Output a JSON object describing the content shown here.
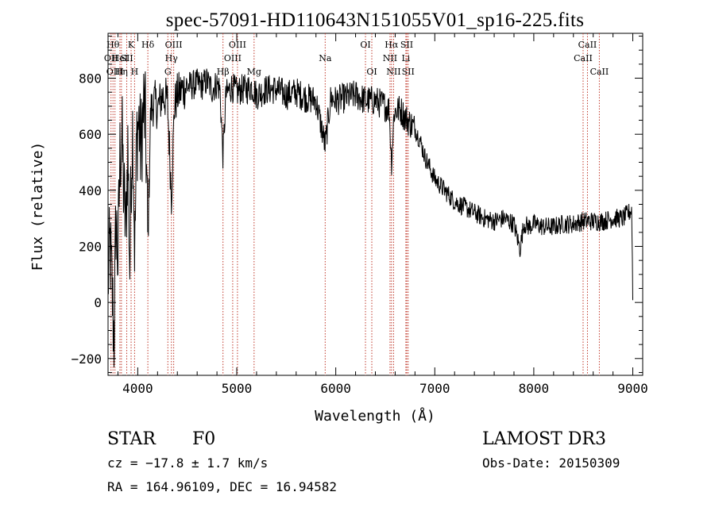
{
  "chart_data": {
    "type": "line",
    "title": "spec-57091-HD110643N151055V01_sp16-225.fits",
    "xlabel": "Wavelength (Å)",
    "ylabel": "Flux (relative)",
    "xlim": [
      3700,
      9100
    ],
    "ylim": [
      -260,
      960
    ],
    "xticks": [
      4000,
      5000,
      6000,
      7000,
      8000,
      9000
    ],
    "yticks": [
      -200,
      0,
      200,
      400,
      600,
      800
    ],
    "grid": false,
    "series": [
      {
        "name": "spectrum",
        "color": "#000000",
        "x": [
          3700,
          3720,
          3740,
          3760,
          3780,
          3800,
          3820,
          3840,
          3860,
          3880,
          3900,
          3920,
          3935,
          3950,
          3970,
          3990,
          4010,
          4030,
          4060,
          4080,
          4102,
          4130,
          4170,
          4200,
          4250,
          4300,
          4340,
          4370,
          4400,
          4450,
          4500,
          4550,
          4600,
          4650,
          4700,
          4750,
          4800,
          4830,
          4861,
          4890,
          4950,
          5000,
          5050,
          5100,
          5150,
          5200,
          5300,
          5400,
          5500,
          5600,
          5700,
          5800,
          5893,
          5950,
          6000,
          6100,
          6200,
          6300,
          6400,
          6500,
          6540,
          6563,
          6590,
          6650,
          6700,
          6750,
          6800,
          6850,
          6900,
          6950,
          7000,
          7050,
          7100,
          7150,
          7200,
          7300,
          7400,
          7500,
          7600,
          7700,
          7800,
          7860,
          7900,
          7950,
          8000,
          8100,
          8200,
          8300,
          8400,
          8500,
          8600,
          8700,
          8800,
          8900,
          8960,
          8990,
          9000
        ],
        "y": [
          80,
          200,
          50,
          -130,
          300,
          150,
          520,
          600,
          380,
          260,
          560,
          120,
          490,
          640,
          170,
          600,
          650,
          540,
          700,
          620,
          200,
          680,
          720,
          690,
          740,
          720,
          380,
          700,
          740,
          760,
          770,
          775,
          780,
          775,
          790,
          760,
          780,
          760,
          520,
          740,
          770,
          750,
          760,
          760,
          770,
          740,
          760,
          760,
          740,
          750,
          730,
          720,
          560,
          730,
          720,
          730,
          740,
          720,
          720,
          700,
          690,
          500,
          680,
          690,
          660,
          640,
          620,
          580,
          520,
          480,
          440,
          420,
          400,
          380,
          360,
          340,
          320,
          300,
          290,
          300,
          280,
          190,
          280,
          270,
          280,
          270,
          270,
          280,
          280,
          290,
          290,
          290,
          300,
          300,
          320,
          330,
          20
        ]
      }
    ],
    "lines": [
      {
        "wavelength": 3730,
        "label": "OII",
        "row": 1
      },
      {
        "wavelength": 3750,
        "label": "Hθ",
        "row": 0
      },
      {
        "wavelength": 3770,
        "label": "OIII",
        "row": 2
      },
      {
        "wavelength": 3820,
        "label": "HeI",
        "row": 1
      },
      {
        "wavelength": 3835,
        "label": "Hη",
        "row": 2
      },
      {
        "wavelength": 3889,
        "label": "SII",
        "row": 1
      },
      {
        "wavelength": 3933,
        "label": "K",
        "row": 0
      },
      {
        "wavelength": 3968,
        "label": "H",
        "row": 2
      },
      {
        "wavelength": 4102,
        "label": "Hδ",
        "row": 0
      },
      {
        "wavelength": 4304,
        "label": "G",
        "row": 2
      },
      {
        "wavelength": 4340,
        "label": "Hγ",
        "row": 1
      },
      {
        "wavelength": 4363,
        "label": "OIII",
        "row": 0
      },
      {
        "wavelength": 4861,
        "label": "Hβ",
        "row": 2
      },
      {
        "wavelength": 4959,
        "label": "OIII",
        "row": 1
      },
      {
        "wavelength": 5007,
        "label": "OIII",
        "row": 0
      },
      {
        "wavelength": 5175,
        "label": "Mg",
        "row": 2
      },
      {
        "wavelength": 5893,
        "label": "Na",
        "row": 1
      },
      {
        "wavelength": 6300,
        "label": "OI",
        "row": 0
      },
      {
        "wavelength": 6364,
        "label": "OI",
        "row": 2
      },
      {
        "wavelength": 6548,
        "label": "NII",
        "row": 1
      },
      {
        "wavelength": 6563,
        "label": "Hα",
        "row": 0
      },
      {
        "wavelength": 6584,
        "label": "NII",
        "row": 2
      },
      {
        "wavelength": 6708,
        "label": "Li",
        "row": 1
      },
      {
        "wavelength": 6717,
        "label": "SII",
        "row": 0
      },
      {
        "wavelength": 6731,
        "label": "SII",
        "row": 2
      },
      {
        "wavelength": 8498,
        "label": "CaII",
        "row": 1
      },
      {
        "wavelength": 8542,
        "label": "CaII",
        "row": 0
      },
      {
        "wavelength": 8662,
        "label": "CaII",
        "row": 2
      }
    ],
    "line_color": "#c0392b"
  },
  "info": {
    "class": "STAR",
    "subclass": "F0",
    "survey": "LAMOST DR3",
    "cz": "cz = −17.8 ± 1.7 km/s",
    "obs_date": "Obs-Date: 20150309",
    "coords": "RA = 164.96109, DEC =  16.94582"
  }
}
